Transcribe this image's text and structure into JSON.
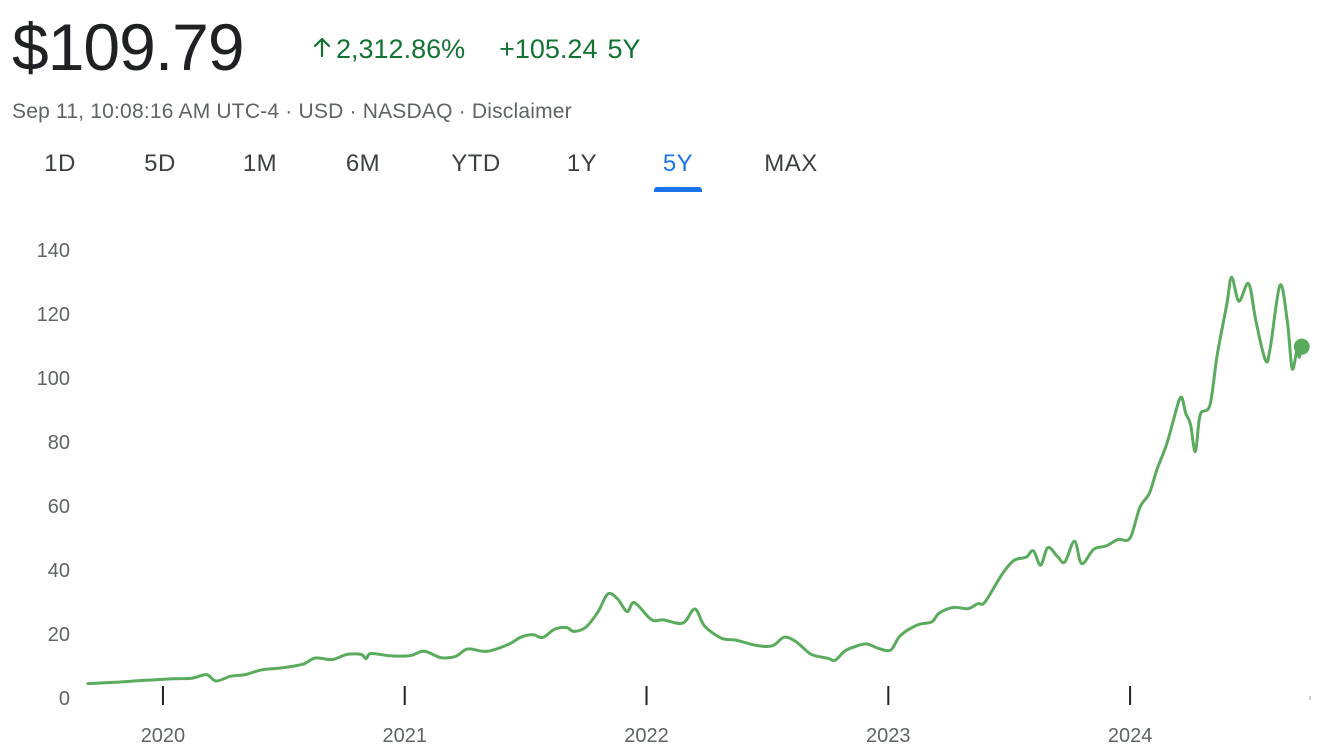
{
  "header": {
    "price": "$109.79",
    "change_pct": "2,312.86%",
    "change_abs": "+105.24",
    "change_range": "5Y",
    "arrow_icon": "arrow-up-icon",
    "meta": "Sep 11, 10:08:16 AM UTC-4 · USD · NASDAQ · Disclaimer"
  },
  "tabs": [
    {
      "label": "1D"
    },
    {
      "label": "5D"
    },
    {
      "label": "1M"
    },
    {
      "label": "6M"
    },
    {
      "label": "YTD"
    },
    {
      "label": "1Y"
    },
    {
      "label": "5Y",
      "active": true
    },
    {
      "label": "MAX"
    }
  ],
  "colors": {
    "line": "#5bab5e",
    "up": "#137333",
    "active_tab": "#1a73e8"
  },
  "chart_data": {
    "type": "line",
    "ylim": [
      0,
      140
    ],
    "yticks": [
      0,
      20,
      40,
      60,
      80,
      100,
      120,
      140
    ],
    "xticks": [
      {
        "label": "2020",
        "x": 2020.0
      },
      {
        "label": "2021",
        "x": 2021.0
      },
      {
        "label": "2022",
        "x": 2022.0
      },
      {
        "label": "2023",
        "x": 2023.0
      },
      {
        "label": "2024",
        "x": 2024.0
      }
    ],
    "xlim": [
      2019.69,
      2024.74
    ],
    "grid": false,
    "series": [
      {
        "last_value": 109.79,
        "points": [
          [
            2019.69,
            4.5
          ],
          [
            2019.8,
            4.9
          ],
          [
            2019.92,
            5.5
          ],
          [
            2020.04,
            6.0
          ],
          [
            2020.12,
            6.2
          ],
          [
            2020.18,
            7.3
          ],
          [
            2020.22,
            5.3
          ],
          [
            2020.28,
            6.8
          ],
          [
            2020.34,
            7.3
          ],
          [
            2020.41,
            8.8
          ],
          [
            2020.5,
            9.5
          ],
          [
            2020.58,
            10.6
          ],
          [
            2020.63,
            12.5
          ],
          [
            2020.7,
            12.0
          ],
          [
            2020.76,
            13.6
          ],
          [
            2020.82,
            13.6
          ],
          [
            2020.84,
            12.3
          ],
          [
            2020.86,
            13.9
          ],
          [
            2020.94,
            13.2
          ],
          [
            2021.02,
            13.2
          ],
          [
            2021.08,
            14.6
          ],
          [
            2021.15,
            12.6
          ],
          [
            2021.21,
            13.0
          ],
          [
            2021.26,
            15.3
          ],
          [
            2021.34,
            14.6
          ],
          [
            2021.43,
            16.8
          ],
          [
            2021.48,
            19.0
          ],
          [
            2021.53,
            19.8
          ],
          [
            2021.57,
            18.9
          ],
          [
            2021.62,
            21.5
          ],
          [
            2021.67,
            22.0
          ],
          [
            2021.7,
            20.8
          ],
          [
            2021.75,
            22.2
          ],
          [
            2021.8,
            27.0
          ],
          [
            2021.84,
            32.5
          ],
          [
            2021.88,
            31.0
          ],
          [
            2021.92,
            27.0
          ],
          [
            2021.95,
            29.8
          ],
          [
            2022.02,
            24.5
          ],
          [
            2022.07,
            24.4
          ],
          [
            2022.15,
            23.4
          ],
          [
            2022.2,
            27.8
          ],
          [
            2022.24,
            22.5
          ],
          [
            2022.31,
            18.7
          ],
          [
            2022.37,
            18.1
          ],
          [
            2022.45,
            16.5
          ],
          [
            2022.52,
            16.3
          ],
          [
            2022.57,
            19.0
          ],
          [
            2022.62,
            17.5
          ],
          [
            2022.68,
            13.7
          ],
          [
            2022.75,
            12.4
          ],
          [
            2022.78,
            11.8
          ],
          [
            2022.82,
            14.7
          ],
          [
            2022.86,
            16.0
          ],
          [
            2022.91,
            16.9
          ],
          [
            2022.96,
            15.5
          ],
          [
            2023.01,
            15.0
          ],
          [
            2023.05,
            19.5
          ],
          [
            2023.12,
            22.8
          ],
          [
            2023.18,
            23.8
          ],
          [
            2023.21,
            26.5
          ],
          [
            2023.27,
            28.3
          ],
          [
            2023.33,
            27.9
          ],
          [
            2023.37,
            29.5
          ],
          [
            2023.4,
            30.0
          ],
          [
            2023.47,
            38.6
          ],
          [
            2023.52,
            43.0
          ],
          [
            2023.57,
            44.0
          ],
          [
            2023.6,
            46.0
          ],
          [
            2023.63,
            41.5
          ],
          [
            2023.66,
            47.0
          ],
          [
            2023.7,
            44.2
          ],
          [
            2023.73,
            42.5
          ],
          [
            2023.77,
            49.0
          ],
          [
            2023.8,
            42.0
          ],
          [
            2023.85,
            46.5
          ],
          [
            2023.9,
            47.5
          ],
          [
            2023.95,
            49.5
          ],
          [
            2024.0,
            50.0
          ],
          [
            2024.04,
            59.5
          ],
          [
            2024.08,
            64.0
          ],
          [
            2024.11,
            71.2
          ],
          [
            2024.15,
            79.0
          ],
          [
            2024.18,
            87.0
          ],
          [
            2024.21,
            94.0
          ],
          [
            2024.23,
            89.0
          ],
          [
            2024.25,
            85.5
          ],
          [
            2024.27,
            77.0
          ],
          [
            2024.29,
            88.5
          ],
          [
            2024.33,
            91.5
          ],
          [
            2024.36,
            107.0
          ],
          [
            2024.4,
            123.0
          ],
          [
            2024.42,
            131.5
          ],
          [
            2024.45,
            124.0
          ],
          [
            2024.49,
            129.5
          ],
          [
            2024.52,
            118.0
          ],
          [
            2024.56,
            105.5
          ],
          [
            2024.58,
            109.5
          ],
          [
            2024.62,
            129.0
          ],
          [
            2024.65,
            118.0
          ],
          [
            2024.67,
            103.0
          ],
          [
            2024.69,
            108.5
          ],
          [
            2024.7,
            106.5
          ],
          [
            2024.71,
            109.79
          ]
        ]
      }
    ]
  }
}
